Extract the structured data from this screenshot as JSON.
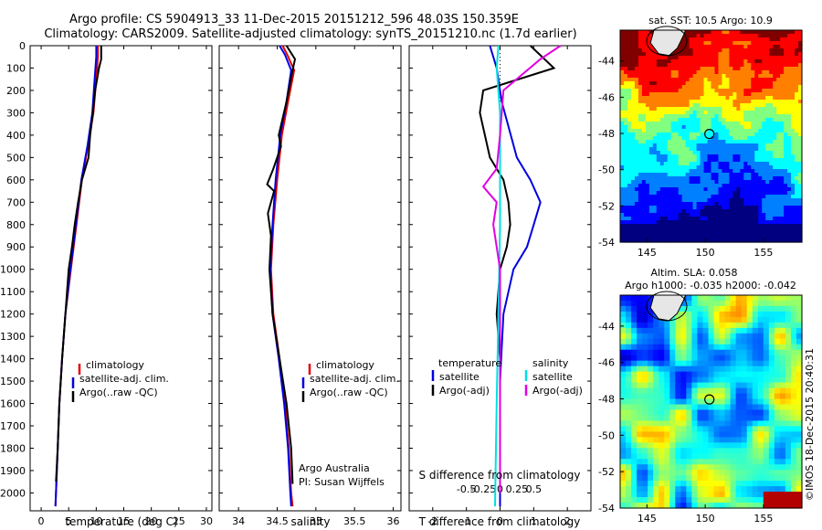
{
  "title": {
    "line1": "Argo profile: CS 5904913_33 11-Dec-2015 20151212_596 48.03S 150.359E",
    "line2": "Climatology: CARS2009. Satellite-adjusted climatology: synTS_20151210.nc (1.7d earlier)"
  },
  "chart_data": [
    {
      "id": "temperature-panel",
      "type": "line",
      "xlabel": "temperature (deg C)",
      "ylabel": "",
      "xlim": [
        -2,
        31
      ],
      "ylim": [
        2080,
        0
      ],
      "xticks": [
        "0",
        "5",
        "10",
        "15",
        "20",
        "25",
        "30"
      ],
      "yticks": [
        "0",
        "100",
        "200",
        "300",
        "400",
        "500",
        "600",
        "700",
        "800",
        "900",
        "1000",
        "1100",
        "1200",
        "1300",
        "1400",
        "1500",
        "1600",
        "1700",
        "1800",
        "1900",
        "2000"
      ],
      "legend": [
        "climatology",
        "satellite-adj. clim.",
        "Argo(..raw -QC)"
      ],
      "series": [
        {
          "name": "climatology",
          "color": "#e00000",
          "points": [
            [
              10.3,
              0
            ],
            [
              10.3,
              50
            ],
            [
              10.0,
              150
            ],
            [
              9.5,
              300
            ],
            [
              8.5,
              450
            ],
            [
              7.4,
              600
            ],
            [
              6.4,
              800
            ],
            [
              5.4,
              1000
            ],
            [
              4.4,
              1200
            ],
            [
              3.8,
              1400
            ],
            [
              3.3,
              1600
            ],
            [
              3.0,
              1800
            ],
            [
              2.7,
              2000
            ],
            [
              2.6,
              2060
            ]
          ]
        },
        {
          "name": "satellite-adj. clim.",
          "color": "#0000e0",
          "points": [
            [
              10.0,
              0
            ],
            [
              10.0,
              50
            ],
            [
              9.7,
              150
            ],
            [
              9.3,
              300
            ],
            [
              8.4,
              450
            ],
            [
              7.3,
              600
            ],
            [
              6.3,
              800
            ],
            [
              5.3,
              1000
            ],
            [
              4.4,
              1200
            ],
            [
              3.8,
              1400
            ],
            [
              3.3,
              1600
            ],
            [
              3.0,
              1800
            ],
            [
              2.7,
              2000
            ],
            [
              2.6,
              2060
            ]
          ]
        },
        {
          "name": "Argo(..raw -QC)",
          "color": "#000000",
          "points": [
            [
              10.9,
              0
            ],
            [
              10.9,
              60
            ],
            [
              10.5,
              100
            ],
            [
              9.8,
              200
            ],
            [
              9.4,
              300
            ],
            [
              8.9,
              400
            ],
            [
              8.6,
              500
            ],
            [
              7.4,
              600
            ],
            [
              6.7,
              700
            ],
            [
              6.1,
              800
            ],
            [
              5.6,
              900
            ],
            [
              5.0,
              1000
            ],
            [
              4.4,
              1200
            ],
            [
              3.8,
              1400
            ],
            [
              3.3,
              1600
            ],
            [
              3.0,
              1800
            ],
            [
              2.7,
              1950
            ]
          ]
        }
      ]
    },
    {
      "id": "salinity-panel",
      "type": "line",
      "xlabel": "salinity",
      "xlim": [
        33.75,
        36.1
      ],
      "ylim": [
        2080,
        0
      ],
      "xticks": [
        "34",
        "34.5",
        "35",
        "35.5",
        "36"
      ],
      "legend": [
        "climatology",
        "satellite-adj. clim.",
        "Argo(..raw -QC)"
      ],
      "annotation": [
        "Argo Australia",
        "PI: Susan Wijffels"
      ],
      "series": [
        {
          "name": "climatology",
          "color": "#e00000",
          "points": [
            [
              34.57,
              0
            ],
            [
              34.63,
              40
            ],
            [
              34.72,
              110
            ],
            [
              34.64,
              250
            ],
            [
              34.56,
              400
            ],
            [
              34.5,
              600
            ],
            [
              34.45,
              800
            ],
            [
              34.42,
              1000
            ],
            [
              34.45,
              1200
            ],
            [
              34.53,
              1400
            ],
            [
              34.6,
              1600
            ],
            [
              34.65,
              1800
            ],
            [
              34.68,
              2000
            ],
            [
              34.7,
              2060
            ]
          ]
        },
        {
          "name": "satellite-adj. clim.",
          "color": "#0000e0",
          "points": [
            [
              34.53,
              0
            ],
            [
              34.6,
              40
            ],
            [
              34.68,
              110
            ],
            [
              34.62,
              250
            ],
            [
              34.54,
              400
            ],
            [
              34.48,
              600
            ],
            [
              34.44,
              800
            ],
            [
              34.41,
              1000
            ],
            [
              34.44,
              1200
            ],
            [
              34.52,
              1400
            ],
            [
              34.59,
              1600
            ],
            [
              34.64,
              1800
            ],
            [
              34.67,
              2000
            ],
            [
              34.68,
              2060
            ]
          ]
        },
        {
          "name": "Argo(..raw -QC)",
          "color": "#000000",
          "points": [
            [
              34.62,
              0
            ],
            [
              34.73,
              60
            ],
            [
              34.7,
              110
            ],
            [
              34.62,
              250
            ],
            [
              34.52,
              400
            ],
            [
              34.55,
              450
            ],
            [
              34.45,
              550
            ],
            [
              34.37,
              620
            ],
            [
              34.46,
              650
            ],
            [
              34.38,
              750
            ],
            [
              34.42,
              850
            ],
            [
              34.4,
              1000
            ],
            [
              34.44,
              1200
            ],
            [
              34.53,
              1400
            ],
            [
              34.62,
              1600
            ],
            [
              34.68,
              1800
            ],
            [
              34.7,
              1960
            ]
          ]
        }
      ]
    },
    {
      "id": "difference-panel",
      "type": "line",
      "xlabel": "T difference from climatology",
      "xlabel2": "S difference from climatology",
      "xlim": [
        -2.7,
        2.7
      ],
      "ylim": [
        2080,
        0
      ],
      "xticks": [
        "-2",
        "-1",
        "0",
        "1",
        "2"
      ],
      "xticks2": [
        "-0.5",
        "-0.25",
        "0",
        "0.25",
        "0.5"
      ],
      "legend_temperature_title": "temperature",
      "legend_salinity_title": "salinity",
      "legend_temperature": [
        "satellite",
        "Argo(-adj)"
      ],
      "legend_salinity": [
        "satellite",
        "Argo(-adj)"
      ],
      "series": [
        {
          "name": "temperature satellite",
          "color": "#0000e0",
          "points": [
            [
              -0.3,
              0
            ],
            [
              -0.1,
              100
            ],
            [
              0.05,
              250
            ],
            [
              0.5,
              500
            ],
            [
              0.9,
              600
            ],
            [
              1.2,
              700
            ],
            [
              1.0,
              800
            ],
            [
              0.8,
              900
            ],
            [
              0.4,
              1000
            ],
            [
              0.1,
              1200
            ],
            [
              0.0,
              1500
            ],
            [
              0.0,
              2060
            ]
          ]
        },
        {
          "name": "temperature Argo(-adj)",
          "color": "#000000",
          "points": [
            [
              0.9,
              0
            ],
            [
              1.6,
              100
            ],
            [
              -0.5,
              200
            ],
            [
              -0.6,
              300
            ],
            [
              -0.3,
              500
            ],
            [
              0.1,
              600
            ],
            [
              0.25,
              700
            ],
            [
              0.3,
              800
            ],
            [
              0.2,
              900
            ],
            [
              0.0,
              1000
            ],
            [
              -0.1,
              1200
            ],
            [
              0.0,
              1400
            ],
            [
              0.0,
              2000
            ]
          ]
        },
        {
          "name": "salinity satellite",
          "color": "#00e0e0",
          "points": [
            [
              -0.05,
              0
            ],
            [
              -0.1,
              100
            ],
            [
              0.0,
              300
            ],
            [
              0.0,
              800
            ],
            [
              -0.05,
              1200
            ],
            [
              -0.1,
              1600
            ],
            [
              -0.15,
              2060
            ]
          ]
        },
        {
          "name": "salinity Argo(-adj)",
          "color": "#e000e0",
          "points": [
            [
              1.8,
              0
            ],
            [
              1.2,
              60
            ],
            [
              0.1,
              200
            ],
            [
              0.0,
              400
            ],
            [
              -0.1,
              550
            ],
            [
              -0.5,
              630
            ],
            [
              -0.1,
              700
            ],
            [
              -0.2,
              800
            ],
            [
              -0.1,
              900
            ],
            [
              0.0,
              1000
            ],
            [
              0.0,
              1200
            ],
            [
              0.0,
              1600
            ],
            [
              0.0,
              2000
            ]
          ]
        }
      ]
    }
  ],
  "maps": {
    "sst": {
      "title": "sat. SST: 10.5  Argo: 10.9",
      "xticks": [
        "145",
        "150",
        "155"
      ],
      "yticks": [
        "-44",
        "-46",
        "-48",
        "-50",
        "-52",
        "-54"
      ],
      "xlim": [
        142.7,
        158.3
      ],
      "ylim": [
        -54,
        -42.3
      ],
      "marker": {
        "lon": 150.359,
        "lat": -48.03
      },
      "sst_argo": 10.9,
      "sst_sat": 10.5
    },
    "sla": {
      "title1": "Altim. SLA: 0.058",
      "title2": "Argo h1000: -0.035 h2000: -0.042",
      "xticks": [
        "145",
        "150",
        "155"
      ],
      "yticks": [
        "-44",
        "-46",
        "-48",
        "-50",
        "-52",
        "-54"
      ],
      "xlim": [
        142.7,
        158.3
      ],
      "ylim": [
        -54,
        -42.3
      ],
      "marker": {
        "lon": 150.359,
        "lat": -48.03
      }
    }
  },
  "credit": "©IMOS 18-Dec-2015 20:40:31",
  "colors": {
    "climatology": "#e00000",
    "satellite": "#0000e0",
    "argo": "#000000",
    "sal_satellite": "#00e0e0",
    "sal_argo": "#e000e0",
    "land": "#e6e6e6"
  }
}
